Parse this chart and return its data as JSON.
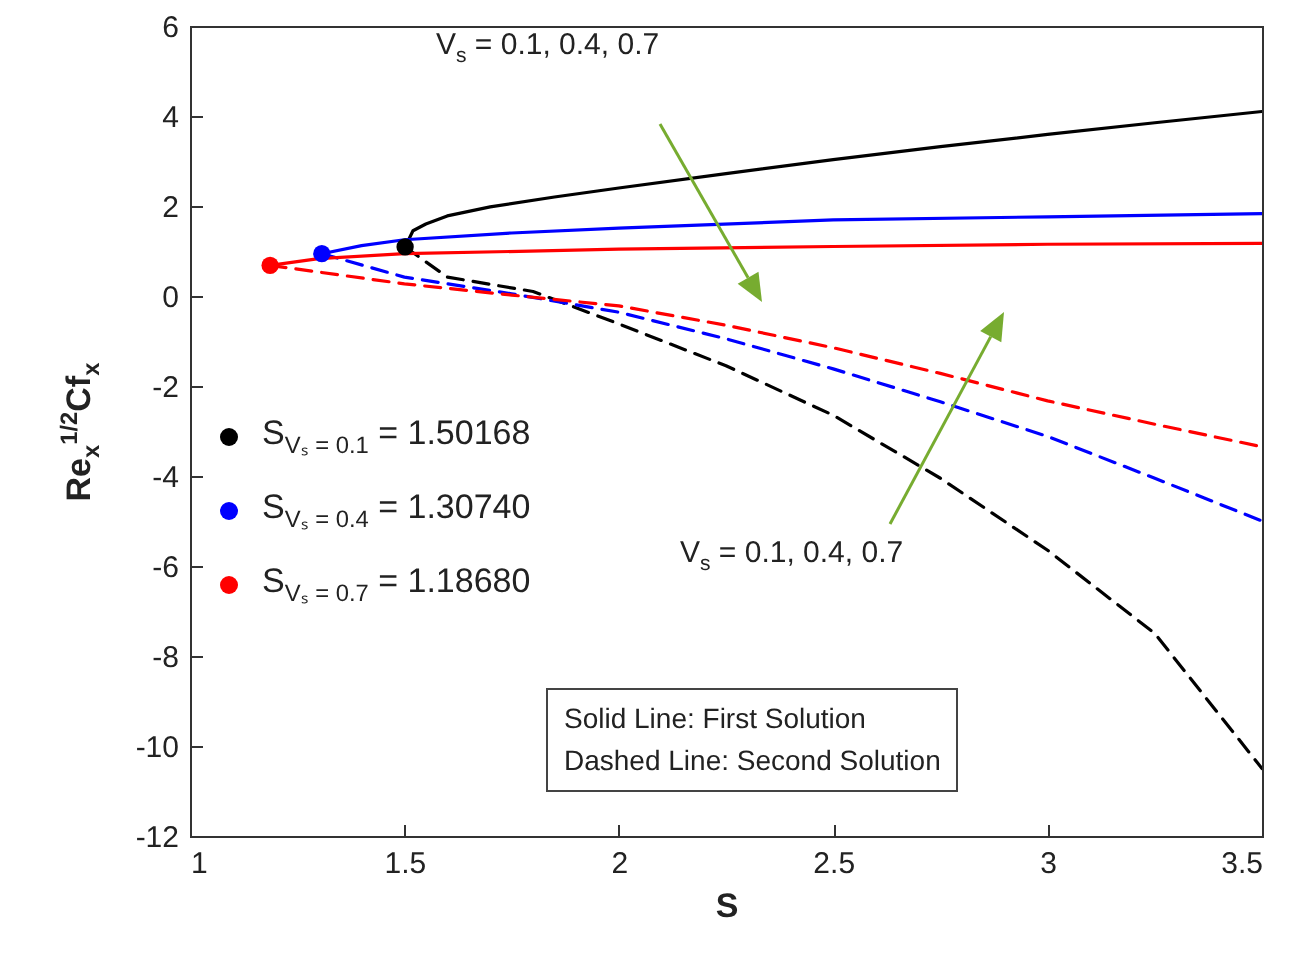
{
  "chart_data": {
    "type": "line",
    "xlabel": "S",
    "ylabel": "Re$_{x}$$^{1/2}$Cf$_{x}$",
    "xlim": [
      1,
      3.5
    ],
    "xticks": [
      1,
      1.5,
      2,
      2.5,
      3,
      3.5
    ],
    "ylim": [
      -12,
      6
    ],
    "yticks": [
      -12,
      -10,
      -8,
      -6,
      -4,
      -2,
      0,
      2,
      4,
      6
    ],
    "grid": false,
    "legend": "left",
    "annotations": [
      "V$_{s}$ = 0.1, 0.4, 0.7",
      "V$_{s}$ = 0.1, 0.4, 0.7",
      "Solid Line: First Solution",
      "Dashed Line: Second Solution"
    ],
    "series": [
      {
        "type": "line",
        "color": "#000000",
        "line_style": "solid",
        "x": [
          1.50168,
          1.52,
          1.55,
          1.6,
          1.7,
          1.85,
          2,
          2.25,
          2.5,
          2.75,
          3,
          3.25,
          3.5
        ],
        "values": [
          1.09,
          1.45,
          1.6,
          1.78,
          1.98,
          2.2,
          2.4,
          2.72,
          3.03,
          3.32,
          3.59,
          3.85,
          4.1
        ]
      },
      {
        "type": "line",
        "color": "#000000",
        "line_style": "dashed",
        "x": [
          1.50168,
          1.6,
          1.8,
          2,
          2.25,
          2.5,
          2.75,
          3,
          3.25,
          3.5
        ],
        "values": [
          1.09,
          0.42,
          0.1,
          -0.62,
          -1.55,
          -2.65,
          -4.05,
          -5.65,
          -7.5,
          -10.5
        ]
      },
      {
        "type": "line",
        "color": "#0000ff",
        "line_style": "solid",
        "x": [
          1.3074,
          1.4,
          1.5,
          1.75,
          2,
          2.5,
          3,
          3.5
        ],
        "values": [
          0.94,
          1.12,
          1.25,
          1.4,
          1.51,
          1.69,
          1.76,
          1.83
        ]
      },
      {
        "type": "line",
        "color": "#0000ff",
        "line_style": "dashed",
        "x": [
          1.3074,
          1.5,
          1.75,
          2,
          2.25,
          2.5,
          2.75,
          3,
          3.25,
          3.5
        ],
        "values": [
          0.94,
          0.42,
          0.05,
          -0.36,
          -0.95,
          -1.62,
          -2.35,
          -3.12,
          -4.05,
          -5.0
        ]
      },
      {
        "type": "line",
        "color": "#ff0000",
        "line_style": "solid",
        "x": [
          1.1868,
          1.3,
          1.5,
          2,
          2.5,
          3,
          3.5
        ],
        "values": [
          0.68,
          0.83,
          0.94,
          1.04,
          1.1,
          1.15,
          1.17
        ]
      },
      {
        "type": "line",
        "color": "#ff0000",
        "line_style": "dashed",
        "x": [
          1.1868,
          1.5,
          1.75,
          2,
          2.25,
          2.5,
          2.75,
          3,
          3.25,
          3.5
        ],
        "values": [
          0.68,
          0.27,
          0.02,
          -0.22,
          -0.65,
          -1.15,
          -1.72,
          -2.33,
          -2.85,
          -3.35
        ]
      },
      {
        "type": "scatter",
        "marker": "circle",
        "color": "#000000",
        "name": "S$_{Vₛ = 0.1}$ = 1.50168",
        "x": [
          1.50168
        ],
        "values": [
          1.09
        ]
      },
      {
        "type": "scatter",
        "marker": "circle",
        "color": "#0000ff",
        "name": "S$_{Vₛ = 0.4}$ = 1.30740",
        "x": [
          1.3074
        ],
        "values": [
          0.94
        ]
      },
      {
        "type": "scatter",
        "marker": "circle",
        "color": "#ff0000",
        "name": "S$_{Vₛ = 0.7}$ = 1.18680",
        "x": [
          1.1868
        ],
        "values": [
          0.68
        ]
      }
    ]
  }
}
